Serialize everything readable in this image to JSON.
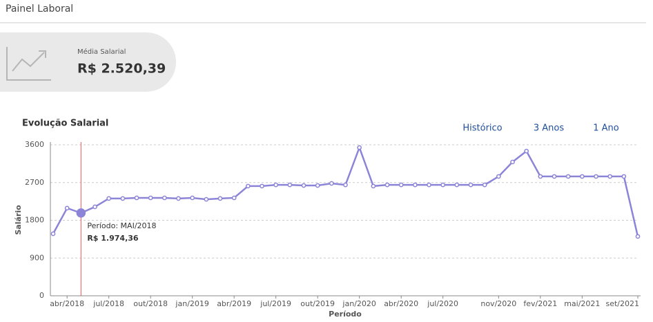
{
  "header": {
    "title": "Painel Laboral"
  },
  "card": {
    "label": "Média Salarial",
    "value": "R$ 2.520,39"
  },
  "buttons": [
    "Histórico",
    "3 Anos",
    "1 Ano"
  ],
  "chart_data": {
    "type": "line",
    "title": "Evolução Salarial",
    "x_label": "Período",
    "y_label": "Salário",
    "categories": [
      null,
      "abr/2018",
      null,
      null,
      "jul/2018",
      null,
      null,
      "out/2018",
      null,
      null,
      "jan/2019",
      null,
      null,
      "abr/2019",
      null,
      null,
      "jul/2019",
      null,
      null,
      "out/2019",
      null,
      null,
      "jan/2020",
      null,
      null,
      "abr/2020",
      null,
      null,
      "jul/2020",
      null,
      null,
      null,
      "nov/2020",
      null,
      null,
      "fev/2021",
      null,
      null,
      "mai/2021",
      null,
      null,
      null,
      "set/2021"
    ],
    "values": [
      1480,
      2090,
      1974.36,
      2120,
      2320,
      2320,
      2335,
      2335,
      2335,
      2320,
      2335,
      2300,
      2320,
      2335,
      2615,
      2615,
      2645,
      2645,
      2630,
      2630,
      2680,
      2645,
      3535,
      2615,
      2645,
      2645,
      2645,
      2645,
      2645,
      2645,
      2645,
      2645,
      2845,
      3190,
      3450,
      2845,
      2845,
      2845,
      2845,
      2845,
      2845,
      2845,
      1415
    ],
    "color": "#8b84d7",
    "ylim": [
      0,
      3600
    ],
    "yticks": [
      0,
      900,
      1800,
      2700,
      3600
    ],
    "grid": true,
    "highlight": 2,
    "tooltip": {
      "period": "Período: MAI/2018",
      "value": "R$ 1.974,36"
    }
  }
}
